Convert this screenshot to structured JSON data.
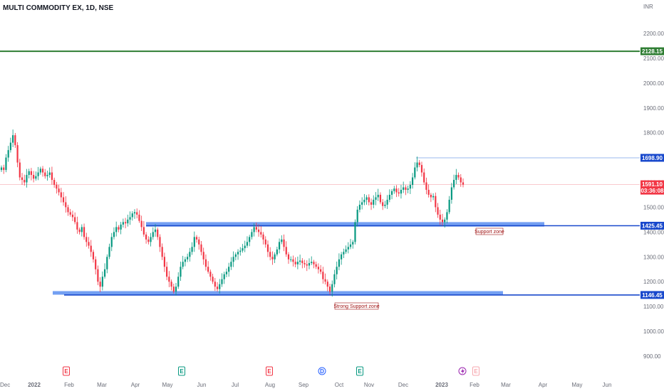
{
  "header": {
    "title": "MULTI COMMODITY EX, 1D, NSE",
    "currency": "INR"
  },
  "chart_data": {
    "type": "candlestick",
    "title": "MULTI COMMODITY EX, 1D, NSE",
    "symbol": "MULTI COMMODITY EX",
    "interval": "1D",
    "exchange": "NSE",
    "currency": "INR",
    "ylim": [
      850,
      2280
    ],
    "y_ticks": [
      "900.00",
      "1000.00",
      "1100.00",
      "1200.00",
      "1300.00",
      "1400.00",
      "1500.00",
      "1600.00",
      "1700.00",
      "1800.00",
      "1900.00",
      "2000.00",
      "2100.00",
      "2200.00"
    ],
    "x_ticks": [
      "Dec",
      "2022",
      "Feb",
      "Mar",
      "Apr",
      "May",
      "Jun",
      "Jul",
      "Aug",
      "Sep",
      "Oct",
      "Nov",
      "Dec",
      "2023",
      "Feb",
      "Mar",
      "Apr",
      "May",
      "Jun"
    ],
    "price_levels": [
      {
        "label": "2128.15",
        "value": 2128.15,
        "color": "#2e7d32"
      },
      {
        "label": "1698.90",
        "value": 1698.9,
        "color": "#1848cc"
      },
      {
        "label": "1591.10",
        "value": 1591.1,
        "color": "#f23645",
        "sublabel": "03:36:08"
      },
      {
        "label": "1425.45",
        "value": 1425.45,
        "color": "#1848cc"
      },
      {
        "label": "1146.45",
        "value": 1146.45,
        "color": "#1848cc"
      }
    ],
    "zones": [
      {
        "name": "Support zone",
        "low": 1422,
        "high": 1440
      },
      {
        "name": "Strong Support zone",
        "low": 1148,
        "high": 1162
      }
    ],
    "candles_close": [
      1660,
      1650,
      1700,
      1730,
      1760,
      1790,
      1750,
      1680,
      1620,
      1610,
      1600,
      1630,
      1645,
      1630,
      1615,
      1625,
      1640,
      1655,
      1640,
      1625,
      1630,
      1640,
      1610,
      1590,
      1575,
      1560,
      1540,
      1520,
      1500,
      1480,
      1470,
      1460,
      1440,
      1410,
      1400,
      1420,
      1380,
      1360,
      1345,
      1320,
      1290,
      1250,
      1200,
      1180,
      1220,
      1250,
      1300,
      1340,
      1380,
      1400,
      1420,
      1410,
      1430,
      1440,
      1435,
      1450,
      1460,
      1475,
      1480,
      1470,
      1445,
      1420,
      1390,
      1370,
      1360,
      1380,
      1400,
      1410,
      1380,
      1340,
      1300,
      1260,
      1220,
      1200,
      1180,
      1160,
      1180,
      1220,
      1260,
      1280,
      1290,
      1300,
      1320,
      1340,
      1380,
      1370,
      1350,
      1320,
      1290,
      1260,
      1240,
      1220,
      1200,
      1180,
      1170,
      1190,
      1210,
      1230,
      1240,
      1260,
      1280,
      1300,
      1310,
      1320,
      1325,
      1335,
      1345,
      1360,
      1380,
      1400,
      1420,
      1410,
      1400,
      1390,
      1370,
      1350,
      1320,
      1300,
      1290,
      1310,
      1330,
      1360,
      1370,
      1340,
      1310,
      1290,
      1290,
      1280,
      1270,
      1280,
      1285,
      1275,
      1270,
      1265,
      1275,
      1280,
      1270,
      1260,
      1250,
      1240,
      1210,
      1200,
      1180,
      1160,
      1190,
      1230,
      1260,
      1290,
      1310,
      1320,
      1330,
      1340,
      1350,
      1360,
      1440,
      1490,
      1510,
      1520,
      1530,
      1540,
      1520,
      1510,
      1530,
      1540,
      1550,
      1520,
      1505,
      1510,
      1530,
      1550,
      1565,
      1575,
      1560,
      1555,
      1570,
      1580,
      1570,
      1575,
      1590,
      1620,
      1660,
      1680,
      1670,
      1640,
      1600,
      1570,
      1550,
      1540,
      1545,
      1500,
      1470,
      1450,
      1440,
      1450,
      1480,
      1530,
      1580,
      1610,
      1630,
      1620,
      1600,
      1591.1
    ],
    "notes": [
      "E",
      "E",
      "E",
      "D",
      "E",
      "E"
    ]
  }
}
